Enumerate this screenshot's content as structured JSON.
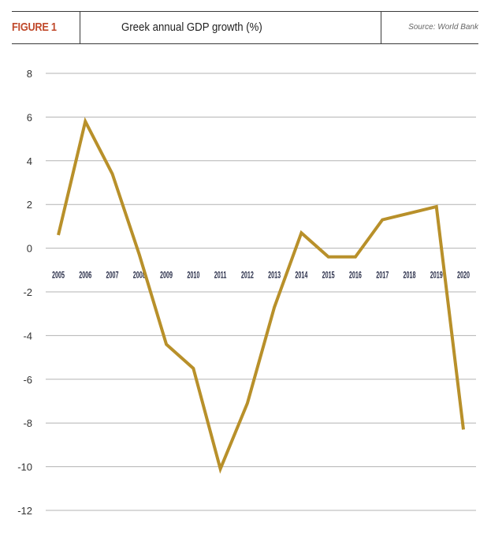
{
  "header": {
    "figure_label": "FIGURE 1",
    "title": "Greek annual GDP growth (%)",
    "source": "Source: World Bank"
  },
  "colors": {
    "figure_label": "#c0492b",
    "line": "#b8902a",
    "grid": "#b3b3b3"
  },
  "chart_data": {
    "type": "line",
    "title": "Greek annual GDP growth (%)",
    "xlabel": "",
    "ylabel": "",
    "x": [
      "2005",
      "2006",
      "2007",
      "2008",
      "2009",
      "2010",
      "2011",
      "2012",
      "2013",
      "2014",
      "2015",
      "2016",
      "2017",
      "2018",
      "2019",
      "2020"
    ],
    "series": [
      {
        "name": "Greek annual GDP growth (%)",
        "values": [
          0.6,
          5.8,
          3.4,
          -0.3,
          -4.4,
          -5.5,
          -10.1,
          -7.1,
          -2.7,
          0.7,
          -0.4,
          -0.4,
          1.3,
          1.6,
          1.9,
          -8.3
        ]
      }
    ],
    "yticks": [
      8,
      6,
      4,
      2,
      0,
      -2,
      -4,
      -6,
      -8,
      -10,
      -12
    ],
    "ylim": [
      -12,
      8
    ],
    "grid": true,
    "legend": "none",
    "x_labels_position": "along zero line",
    "source": "World Bank"
  }
}
